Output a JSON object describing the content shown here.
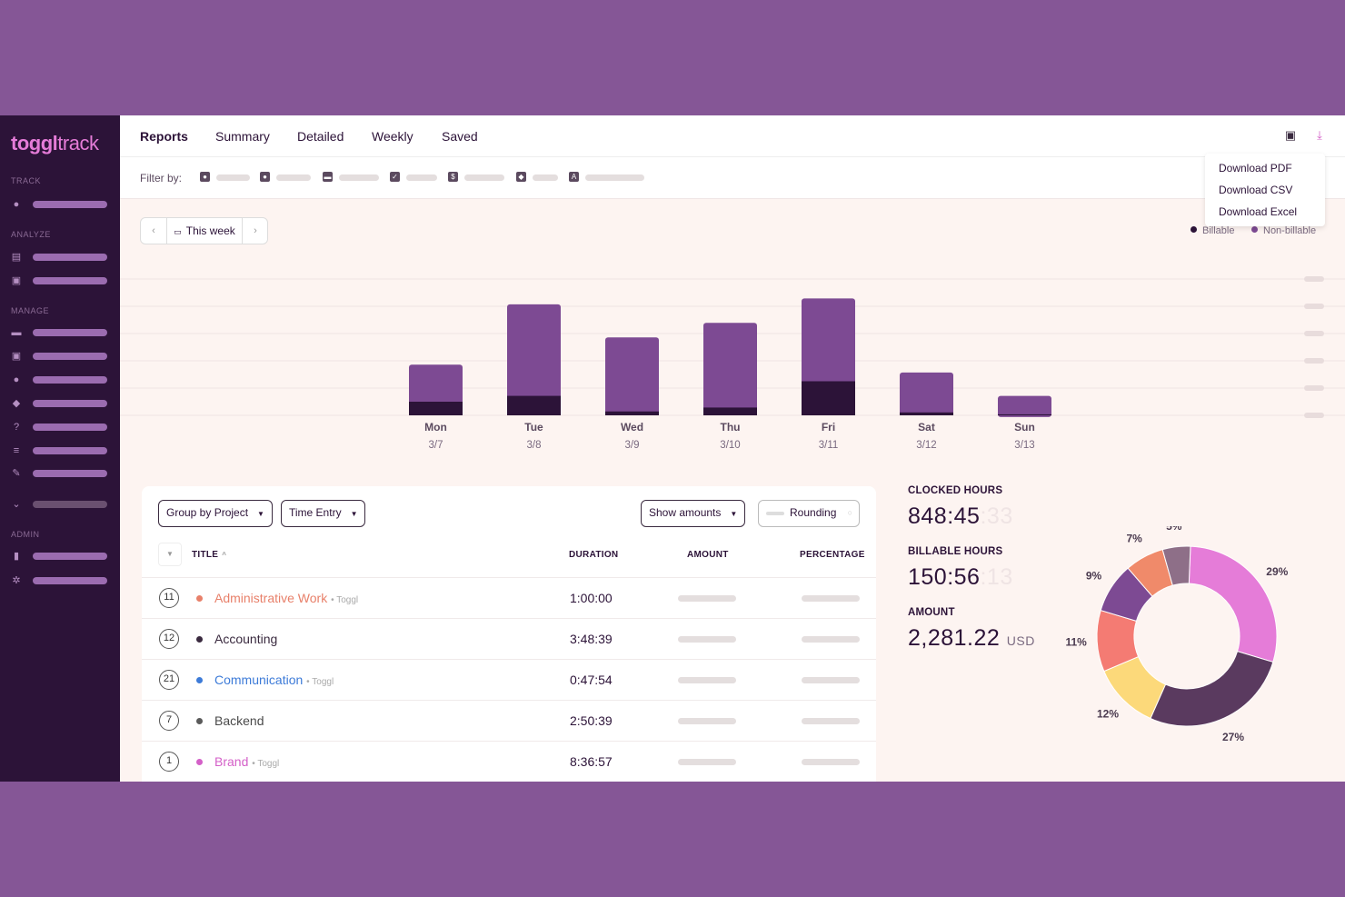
{
  "app": {
    "logo_bold": "toggl",
    "logo_light": "track"
  },
  "sidebar": {
    "sections": [
      "TRACK",
      "ANALYZE",
      "MANAGE",
      "ADMIN"
    ]
  },
  "nav": {
    "tabs": [
      "Reports",
      "Summary",
      "Detailed",
      "Weekly",
      "Saved"
    ]
  },
  "filter": {
    "label": "Filter by:"
  },
  "export_menu": {
    "items": [
      "Download PDF",
      "Download CSV",
      "Download Excel"
    ]
  },
  "week": {
    "label": "This week",
    "prev": "‹",
    "next": "›"
  },
  "legend": {
    "billable": "Billable",
    "non_billable": "Non-billable"
  },
  "colors": {
    "billable": "#2c1338",
    "non_billable": "#7d4a93",
    "accent": "#e57cd8",
    "sidebar": "#2c1338"
  },
  "chart_data": {
    "type": "bar",
    "categories": [
      "Mon",
      "Tue",
      "Wed",
      "Thu",
      "Fri",
      "Sat",
      "Sun"
    ],
    "dates": [
      "3/7",
      "3/8",
      "3/9",
      "3/10",
      "3/11",
      "3/12",
      "3/13"
    ],
    "series": [
      {
        "name": "Billable",
        "values": [
          14,
          20,
          4,
          8,
          35,
          3,
          1
        ]
      },
      {
        "name": "Non-billable",
        "values": [
          38,
          94,
          76,
          87,
          85,
          41,
          19
        ]
      }
    ],
    "ylim": [
      0,
      140
    ],
    "grid": true,
    "stacked": true
  },
  "controls": {
    "group_by": "Group by Project",
    "entry": "Time Entry",
    "show_amounts": "Show amounts",
    "rounding": "Rounding"
  },
  "table": {
    "headers": {
      "title": "TITLE",
      "duration": "DURATION",
      "amount": "AMOUNT",
      "percentage": "PERCENTAGE"
    },
    "rows": [
      {
        "count": "11",
        "name": "Administrative Work",
        "client": "• Toggl",
        "duration": "1:00:00",
        "color": "#e8806a"
      },
      {
        "count": "12",
        "name": "Accounting",
        "client": "",
        "duration": "3:48:39",
        "color": "#3a2a3f"
      },
      {
        "count": "21",
        "name": "Communication",
        "client": "• Toggl",
        "duration": "0:47:54",
        "color": "#3d7bd8"
      },
      {
        "count": "7",
        "name": "Backend",
        "client": "",
        "duration": "2:50:39",
        "color": "#5a5a5a"
      },
      {
        "count": "1",
        "name": "Brand",
        "client": "• Toggl",
        "duration": "8:36:57",
        "color": "#d460c8"
      }
    ]
  },
  "stats": {
    "clocked_label": "CLOCKED HOURS",
    "clocked_value": "848:45",
    "clocked_ghost": ":33",
    "billable_label": "BILLABLE HOURS",
    "billable_value": "150:56",
    "billable_ghost": ":13",
    "amount_label": "AMOUNT",
    "amount_value": "2,281.22",
    "amount_currency": "USD"
  },
  "donut_data": {
    "type": "pie",
    "slices": [
      {
        "label": "29%",
        "value": 29,
        "color": "#e57cd8"
      },
      {
        "label": "27%",
        "value": 27,
        "color": "#5a3a5f"
      },
      {
        "label": "12%",
        "value": 12,
        "color": "#fcd97a"
      },
      {
        "label": "11%",
        "value": 11,
        "color": "#f47b73"
      },
      {
        "label": "9%",
        "value": 9,
        "color": "#7d4a93"
      },
      {
        "label": "7%",
        "value": 7,
        "color": "#f08a6a"
      },
      {
        "label": "5%",
        "value": 5,
        "color": "#8e6f88"
      }
    ]
  }
}
